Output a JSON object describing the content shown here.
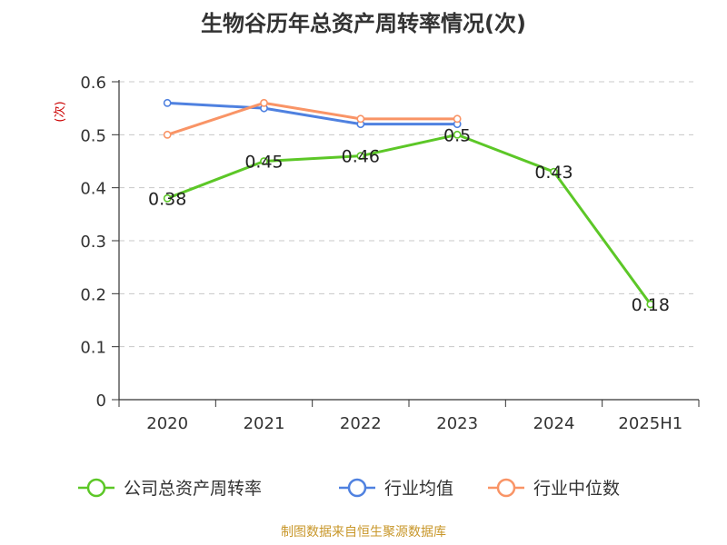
{
  "chart_data": {
    "type": "line",
    "title": "生物谷历年总资产周转率情况(次)",
    "ylabel": "(次)",
    "xlabel": "",
    "categories": [
      "2020",
      "2021",
      "2022",
      "2023",
      "2024",
      "2025H1"
    ],
    "ylim": [
      0,
      0.6
    ],
    "yticks": [
      "0",
      "0.1",
      "0.2",
      "0.3",
      "0.4",
      "0.5",
      "0.6"
    ],
    "grid": true,
    "legend_position": "bottom",
    "series": [
      {
        "name": "公司总资产周转率",
        "color": "#5cc727",
        "values": [
          0.38,
          0.45,
          0.46,
          0.5,
          0.43,
          0.18
        ],
        "data_labels": [
          "0.38",
          "0.45",
          "0.46",
          "0.5",
          "0.43",
          "0.18"
        ]
      },
      {
        "name": "行业均值",
        "color": "#4f81e0",
        "values": [
          0.56,
          0.55,
          0.52,
          0.52,
          null,
          null
        ]
      },
      {
        "name": "行业中位数",
        "color": "#f99466",
        "values": [
          0.5,
          0.56,
          0.53,
          0.53,
          null,
          null
        ]
      }
    ]
  },
  "source_note": "制图数据来自恒生聚源数据库"
}
